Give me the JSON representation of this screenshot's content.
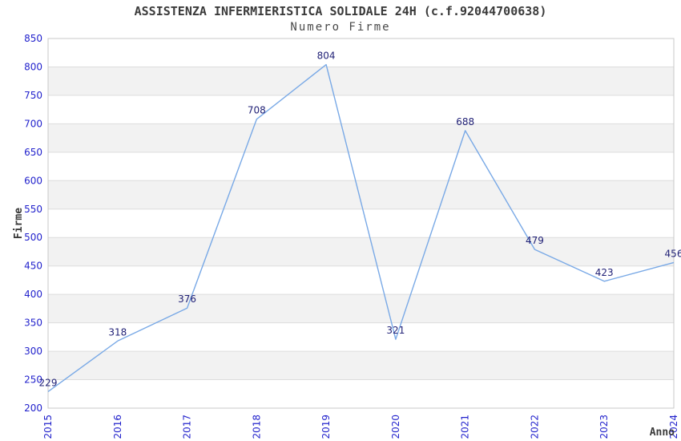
{
  "chart_data": {
    "type": "line",
    "title": "ASSISTENZA INFERMIERISTICA SOLIDALE 24H (c.f.92044700638)",
    "subtitle": "Numero Firme",
    "xlabel": "Anno",
    "ylabel": "Firme",
    "categories": [
      "2015",
      "2016",
      "2017",
      "2018",
      "2019",
      "2020",
      "2021",
      "2022",
      "2023",
      "2024"
    ],
    "values": [
      229,
      318,
      376,
      708,
      804,
      321,
      688,
      479,
      423,
      456
    ],
    "ylim": [
      200,
      850
    ],
    "ytick_step": 50,
    "grid": true,
    "banded_background": true,
    "legend_position": "none",
    "colors": {
      "line": "#79A9E6",
      "tick_label": "#2222CC",
      "data_label": "#222277",
      "band": "#F2F2F2",
      "gridline": "#DDDDDD",
      "plot_border": "#C8C8C8",
      "axis_title": "#3A3A3A",
      "background": "#FFFFFF"
    }
  }
}
